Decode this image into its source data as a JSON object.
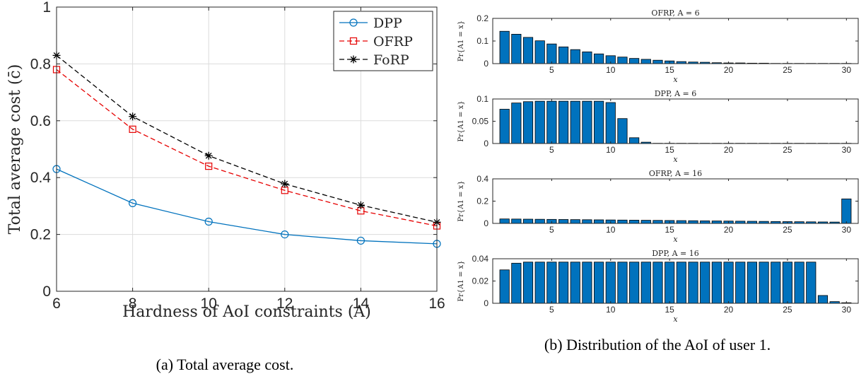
{
  "captions": {
    "a": "(a) Total average cost.",
    "b": "(b) Distribution of the AoI of user 1."
  },
  "chart_data": [
    {
      "id": "left",
      "type": "line",
      "xlabel": "Hardness of AoI constraints (A)",
      "ylabel": "Total average cost (c̄)",
      "xlim": [
        6,
        16
      ],
      "ylim": [
        0,
        1
      ],
      "xticks": [
        "6",
        "8",
        "10",
        "12",
        "14",
        "16"
      ],
      "yticks": [
        "0",
        "0.2",
        "0.4",
        "0.6",
        "0.8",
        "1"
      ],
      "grid": true,
      "legend": "top-right",
      "x": [
        6,
        8,
        10,
        12,
        14,
        16
      ],
      "series": [
        {
          "name": "DPP",
          "color": "#0072BD",
          "marker": "circle",
          "dash": "solid",
          "values": [
            0.43,
            0.31,
            0.245,
            0.2,
            0.178,
            0.167
          ]
        },
        {
          "name": "OFRP",
          "color": "#E60000",
          "marker": "square",
          "dash": "dashed",
          "values": [
            0.78,
            0.57,
            0.44,
            0.355,
            0.283,
            0.23
          ]
        },
        {
          "name": "FoRP",
          "color": "#000000",
          "marker": "star",
          "dash": "dashed",
          "values": [
            0.83,
            0.615,
            0.477,
            0.378,
            0.303,
            0.243
          ]
        }
      ]
    },
    {
      "id": "sub1",
      "type": "bar",
      "title": "OFRP, A = 6",
      "xlabel": "x",
      "ylabel": "Pr{A1 = x}",
      "xlim": [
        0,
        31
      ],
      "ylim": [
        0,
        0.2
      ],
      "xticks": [
        "5",
        "10",
        "15",
        "20",
        "25",
        "30"
      ],
      "yticks": [
        "0",
        "0.1",
        "0.2"
      ],
      "color": "#0072BD",
      "x": [
        1,
        2,
        3,
        4,
        5,
        6,
        7,
        8,
        9,
        10,
        11,
        12,
        13,
        14,
        15,
        16,
        17,
        18,
        19,
        20,
        21,
        22,
        23,
        24,
        25,
        26,
        27,
        28,
        29,
        30
      ],
      "values": [
        0.143,
        0.13,
        0.116,
        0.101,
        0.087,
        0.074,
        0.062,
        0.052,
        0.043,
        0.035,
        0.029,
        0.023,
        0.019,
        0.015,
        0.012,
        0.009,
        0.007,
        0.006,
        0.004,
        0.003,
        0.003,
        0.002,
        0.002,
        0.001,
        0.001,
        0.001,
        0.001,
        0.001,
        0.001,
        0.001
      ]
    },
    {
      "id": "sub2",
      "type": "bar",
      "title": "DPP, A = 6",
      "xlabel": "x",
      "ylabel": "Pr{A1 = x}",
      "xlim": [
        0,
        31
      ],
      "ylim": [
        0,
        0.1
      ],
      "xticks": [
        "5",
        "10",
        "15",
        "20",
        "25",
        "30"
      ],
      "yticks": [
        "0",
        "0.05",
        "0.1"
      ],
      "color": "#0072BD",
      "x": [
        1,
        2,
        3,
        4,
        5,
        6,
        7,
        8,
        9,
        10,
        11,
        12,
        13,
        14,
        15,
        16,
        17,
        18,
        19,
        20,
        21,
        22,
        23,
        24,
        25,
        26,
        27,
        28,
        29,
        30
      ],
      "values": [
        0.077,
        0.091,
        0.094,
        0.095,
        0.095,
        0.095,
        0.095,
        0.095,
        0.095,
        0.092,
        0.056,
        0.013,
        0.003,
        0.0005,
        0.0005,
        0.0005,
        0.0005,
        0.0005,
        0.0005,
        0.0005,
        0.0005,
        0.0005,
        0.0005,
        0.0005,
        0.0005,
        0.0005,
        0.0005,
        0.0005,
        0.0005,
        0.0005
      ]
    },
    {
      "id": "sub3",
      "type": "bar",
      "title": "OFRP, A = 16",
      "xlabel": "x",
      "ylabel": "Pr{A1 = x}",
      "xlim": [
        0,
        31
      ],
      "ylim": [
        0,
        0.4
      ],
      "xticks": [
        "5",
        "10",
        "15",
        "20",
        "25",
        "30"
      ],
      "yticks": [
        "0",
        "0.2",
        "0.4"
      ],
      "color": "#0072BD",
      "x": [
        1,
        2,
        3,
        4,
        5,
        6,
        7,
        8,
        9,
        10,
        11,
        12,
        13,
        14,
        15,
        16,
        17,
        18,
        19,
        20,
        21,
        22,
        23,
        24,
        25,
        26,
        27,
        28,
        29,
        30
      ],
      "values": [
        0.04,
        0.039,
        0.038,
        0.037,
        0.036,
        0.035,
        0.034,
        0.033,
        0.032,
        0.031,
        0.03,
        0.029,
        0.028,
        0.027,
        0.026,
        0.025,
        0.024,
        0.023,
        0.022,
        0.021,
        0.02,
        0.019,
        0.018,
        0.017,
        0.016,
        0.015,
        0.014,
        0.013,
        0.012,
        0.22
      ]
    },
    {
      "id": "sub4",
      "type": "bar",
      "title": "DPP, A = 16",
      "xlabel": "x",
      "ylabel": "Pr{A1 = x}",
      "xlim": [
        0,
        31
      ],
      "ylim": [
        0,
        0.04
      ],
      "xticks": [
        "5",
        "10",
        "15",
        "20",
        "25",
        "30"
      ],
      "yticks": [
        "0",
        "0.02",
        "0.04"
      ],
      "color": "#0072BD",
      "x": [
        1,
        2,
        3,
        4,
        5,
        6,
        7,
        8,
        9,
        10,
        11,
        12,
        13,
        14,
        15,
        16,
        17,
        18,
        19,
        20,
        21,
        22,
        23,
        24,
        25,
        26,
        27,
        28,
        29,
        30
      ],
      "values": [
        0.03,
        0.036,
        0.037,
        0.037,
        0.037,
        0.037,
        0.037,
        0.037,
        0.037,
        0.037,
        0.037,
        0.037,
        0.037,
        0.037,
        0.037,
        0.037,
        0.037,
        0.037,
        0.037,
        0.037,
        0.037,
        0.037,
        0.037,
        0.037,
        0.037,
        0.037,
        0.037,
        0.007,
        0.0015,
        0.0005
      ]
    }
  ]
}
